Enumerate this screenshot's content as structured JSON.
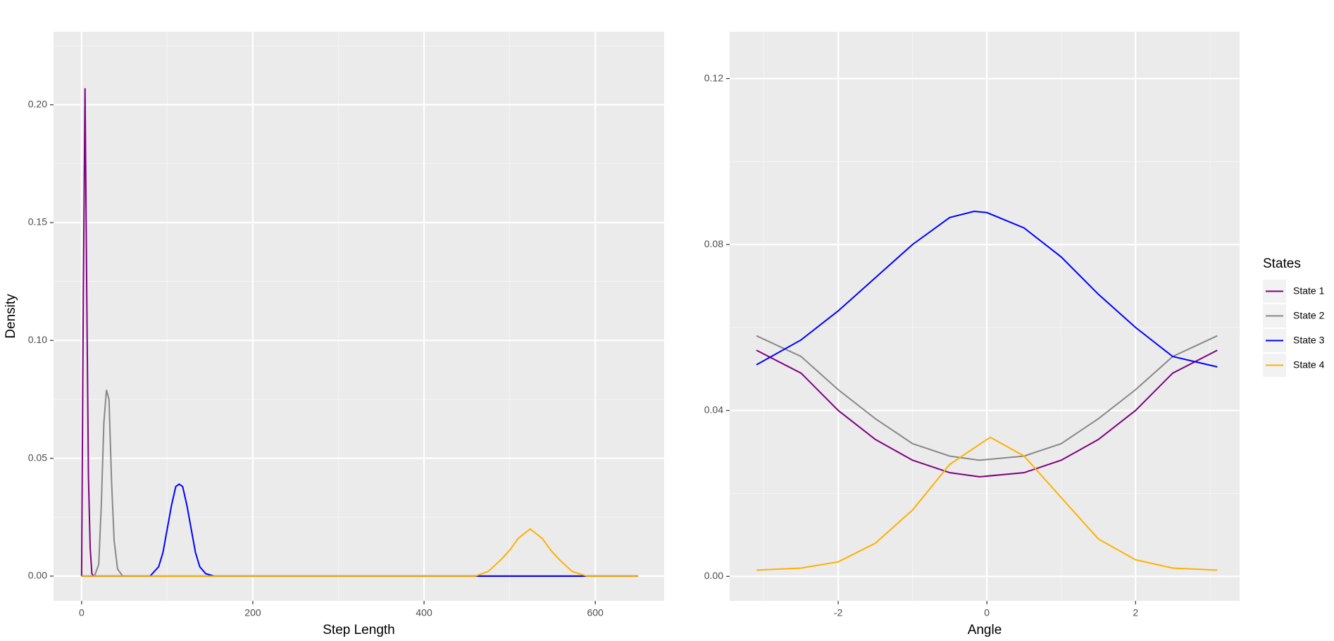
{
  "chart_data": [
    {
      "type": "line",
      "x_label": "Step Length",
      "y_label": "Density",
      "xlim": [
        -32.8,
        680.5
      ],
      "ylim": [
        -0.0105,
        0.231
      ],
      "xticks": [
        0,
        200,
        400,
        600
      ],
      "yticks": [
        {
          "value": 0,
          "label": "0.00"
        },
        {
          "value": 0.05,
          "label": "0.05"
        },
        {
          "value": 0.1,
          "label": "0.10"
        },
        {
          "value": 0.15,
          "label": "0.15"
        },
        {
          "value": 0.2,
          "label": "0.20"
        }
      ],
      "xminor": [
        100,
        300,
        500
      ],
      "yminor": [
        0.025,
        0.075,
        0.125,
        0.175,
        0.225
      ],
      "grid": true,
      "series": [
        {
          "color": "#800080",
          "x": [
            0,
            2,
            4,
            6,
            8,
            10,
            12,
            14,
            20,
            650
          ],
          "values": [
            0,
            0.12,
            0.207,
            0.12,
            0.042,
            0.012,
            0.001,
            0,
            0,
            0
          ]
        },
        {
          "color": "#888888",
          "x": [
            0,
            15,
            20,
            23,
            26,
            29,
            32,
            35,
            38,
            42,
            48,
            650
          ],
          "values": [
            0,
            0,
            0.005,
            0.03,
            0.065,
            0.079,
            0.075,
            0.04,
            0.015,
            0.003,
            0,
            0
          ]
        },
        {
          "color": "#0000ff",
          "x": [
            0,
            80,
            90,
            95,
            100,
            105,
            110,
            114,
            118,
            123,
            128,
            133,
            138,
            145,
            155,
            650
          ],
          "values": [
            0,
            0,
            0.004,
            0.01,
            0.02,
            0.03,
            0.038,
            0.039,
            0.038,
            0.03,
            0.02,
            0.01,
            0.004,
            0.001,
            0,
            0
          ]
        },
        {
          "color": "#ffb000",
          "x": [
            0,
            460,
            475,
            490,
            500,
            510,
            524,
            538,
            548,
            558,
            573,
            590,
            650
          ],
          "values": [
            0,
            0,
            0.002,
            0.007,
            0.011,
            0.016,
            0.02,
            0.016,
            0.011,
            0.007,
            0.002,
            0,
            0
          ]
        }
      ]
    },
    {
      "type": "line",
      "x_label": "Angle",
      "xlim": [
        -3.46,
        3.4
      ],
      "ylim": [
        -0.0059,
        0.1313
      ],
      "xticks": [
        -2,
        0,
        2
      ],
      "yticks": [
        {
          "value": 0,
          "label": "0.00"
        },
        {
          "value": 0.04,
          "label": "0.04"
        },
        {
          "value": 0.08,
          "label": "0.08"
        },
        {
          "value": 0.12,
          "label": "0.12"
        }
      ],
      "xminor": [
        -3,
        -1,
        1,
        3
      ],
      "yminor": [
        0.02,
        0.06,
        0.1
      ],
      "grid": true,
      "legend_title": "States",
      "legend": "right",
      "series": [
        {
          "name": "State 1",
          "color": "#800080",
          "x": [
            -3.1,
            -2.5,
            -2,
            -1.5,
            -1,
            -0.5,
            -0.1,
            0.5,
            1,
            1.5,
            2,
            2.5,
            3.1
          ],
          "values": [
            0.0545,
            0.049,
            0.04,
            0.033,
            0.028,
            0.025,
            0.024,
            0.025,
            0.028,
            0.033,
            0.04,
            0.049,
            0.0545
          ]
        },
        {
          "name": "State 2",
          "color": "#888888",
          "x": [
            -3.1,
            -2.5,
            -2,
            -1.5,
            -1,
            -0.5,
            -0.1,
            0.5,
            1,
            1.5,
            2,
            2.5,
            3.1
          ],
          "values": [
            0.058,
            0.053,
            0.045,
            0.038,
            0.032,
            0.029,
            0.028,
            0.029,
            0.032,
            0.038,
            0.045,
            0.053,
            0.058
          ]
        },
        {
          "name": "State 3",
          "color": "#0000ff",
          "x": [
            -3.1,
            -2.5,
            -2,
            -1.5,
            -1,
            -0.5,
            -0.17,
            0,
            0.5,
            1,
            1.5,
            2,
            2.5,
            3.1
          ],
          "values": [
            0.051,
            0.057,
            0.064,
            0.072,
            0.08,
            0.0865,
            0.088,
            0.0877,
            0.084,
            0.077,
            0.068,
            0.06,
            0.053,
            0.0505
          ]
        },
        {
          "name": "State 4",
          "color": "#ffb000",
          "x": [
            -3.1,
            -2.5,
            -2,
            -1.5,
            -1,
            -0.5,
            0,
            0.05,
            0.5,
            1,
            1.5,
            2,
            2.5,
            3.1
          ],
          "values": [
            0.0015,
            0.002,
            0.0035,
            0.008,
            0.016,
            0.027,
            0.033,
            0.0335,
            0.029,
            0.019,
            0.009,
            0.004,
            0.002,
            0.0015
          ]
        }
      ]
    }
  ]
}
